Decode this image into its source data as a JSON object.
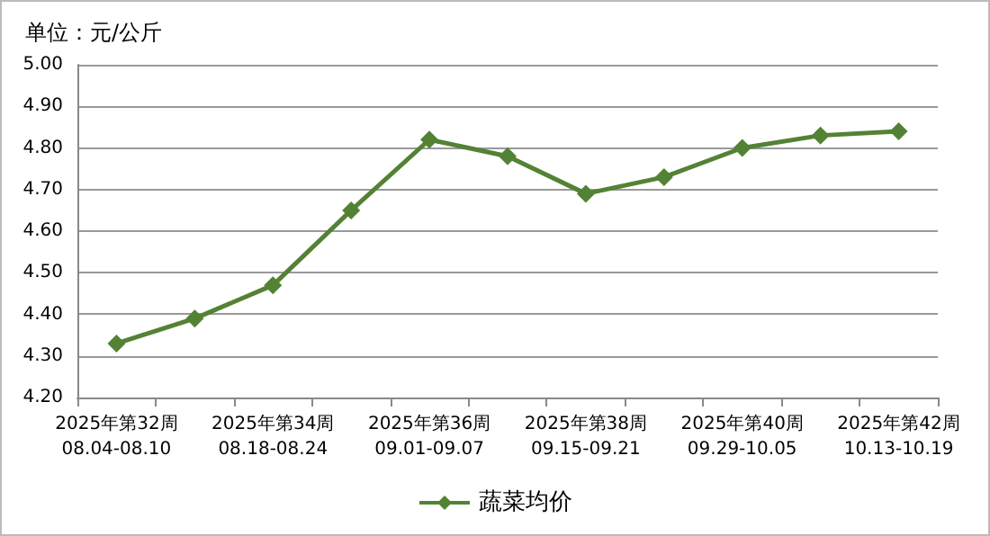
{
  "chart_data": {
    "type": "line",
    "title": "单位：元/公斤",
    "categories": [
      "2025年第32周\n08.04-08.10",
      null,
      "2025年第34周\n08.18-08.24",
      null,
      "2025年第36周\n09.01-09.07",
      null,
      "2025年第38周\n09.15-09.21",
      null,
      "2025年第40周\n09.29-10.05",
      null,
      "2025年第42周\n10.13-10.19"
    ],
    "series": [
      {
        "name": "蔬菜均价",
        "color": "#548235",
        "values": [
          4.33,
          4.39,
          4.47,
          4.65,
          4.82,
          4.78,
          4.69,
          4.73,
          4.8,
          4.83,
          4.84
        ]
      }
    ],
    "ylim": [
      4.2,
      5.0
    ],
    "yticks": [
      {
        "value": 4.2,
        "label": "4.20"
      },
      {
        "value": 4.3,
        "label": "4.30"
      },
      {
        "value": 4.4,
        "label": "4.40"
      },
      {
        "value": 4.5,
        "label": "4.50"
      },
      {
        "value": 4.6,
        "label": "4.60"
      },
      {
        "value": 4.7,
        "label": "4.70"
      },
      {
        "value": 4.8,
        "label": "4.80"
      },
      {
        "value": 4.9,
        "label": "4.90"
      },
      {
        "value": 5.0,
        "label": "5.00"
      }
    ],
    "grid": "y",
    "legend": "bottom",
    "marker": "diamond",
    "line_style": "solid"
  }
}
